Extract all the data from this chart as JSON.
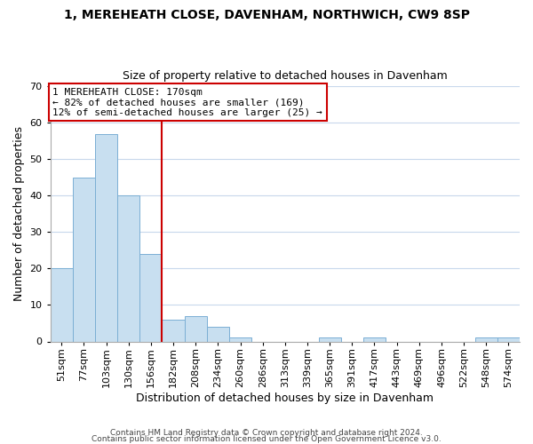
{
  "title1": "1, MEREHEATH CLOSE, DAVENHAM, NORTHWICH, CW9 8SP",
  "title2": "Size of property relative to detached houses in Davenham",
  "xlabel": "Distribution of detached houses by size in Davenham",
  "ylabel": "Number of detached properties",
  "bar_labels": [
    "51sqm",
    "77sqm",
    "103sqm",
    "130sqm",
    "156sqm",
    "182sqm",
    "208sqm",
    "234sqm",
    "260sqm",
    "286sqm",
    "313sqm",
    "339sqm",
    "365sqm",
    "391sqm",
    "417sqm",
    "443sqm",
    "469sqm",
    "496sqm",
    "522sqm",
    "548sqm",
    "574sqm"
  ],
  "bar_values": [
    20,
    45,
    57,
    40,
    24,
    6,
    7,
    4,
    1,
    0,
    0,
    0,
    1,
    0,
    1,
    0,
    0,
    0,
    0,
    1,
    1
  ],
  "bar_color": "#c8dff0",
  "bar_edge_color": "#7bafd4",
  "vline_x_index": 5,
  "vline_color": "#cc0000",
  "ylim": [
    0,
    70
  ],
  "yticks": [
    0,
    10,
    20,
    30,
    40,
    50,
    60,
    70
  ],
  "annotation_title": "1 MEREHEATH CLOSE: 170sqm",
  "annotation_line1": "← 82% of detached houses are smaller (169)",
  "annotation_line2": "12% of semi-detached houses are larger (25) →",
  "footnote1": "Contains HM Land Registry data © Crown copyright and database right 2024.",
  "footnote2": "Contains public sector information licensed under the Open Government Licence v3.0.",
  "bg_color": "#ffffff",
  "grid_color": "#c8d8ec",
  "title1_fontsize": 10,
  "title2_fontsize": 9,
  "ylabel_fontsize": 9,
  "xlabel_fontsize": 9,
  "annotation_fontsize": 8,
  "tick_fontsize": 8,
  "footnote_fontsize": 6.5
}
